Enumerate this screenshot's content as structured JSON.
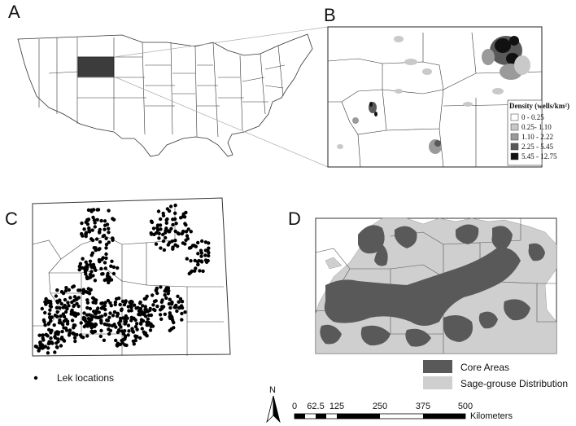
{
  "panels": {
    "a": {
      "letter": "A"
    },
    "b": {
      "letter": "B",
      "legend": {
        "title": "Density (wells/km²)",
        "classes": [
          {
            "label": "0 - 0.25",
            "color": "#ffffff"
          },
          {
            "label": "0.25- 1.10",
            "color": "#c9c9c9"
          },
          {
            "label": "1.10 - 2.22",
            "color": "#9a9a9a"
          },
          {
            "label": "2.25 - 5.45",
            "color": "#595959"
          },
          {
            "label": "5.45 - 12.75",
            "color": "#111111"
          }
        ]
      }
    },
    "c": {
      "letter": "C",
      "legend_label": "Lek locations"
    },
    "d": {
      "letter": "D",
      "legend": [
        {
          "label": "Core Areas",
          "color": "#595959"
        },
        {
          "label": "Sage-grouse Distribution",
          "color": "#cfcfcf"
        }
      ]
    }
  },
  "north_arrow": {
    "label": "N"
  },
  "scale_bar": {
    "ticks": [
      "0",
      "62.5",
      "125",
      "250",
      "375",
      "500"
    ],
    "unit": "Kilometers"
  },
  "colors": {
    "highlight_state": "#3c3c3c",
    "core": "#595959",
    "distribution": "#cfcfcf",
    "outline": "#222222"
  }
}
